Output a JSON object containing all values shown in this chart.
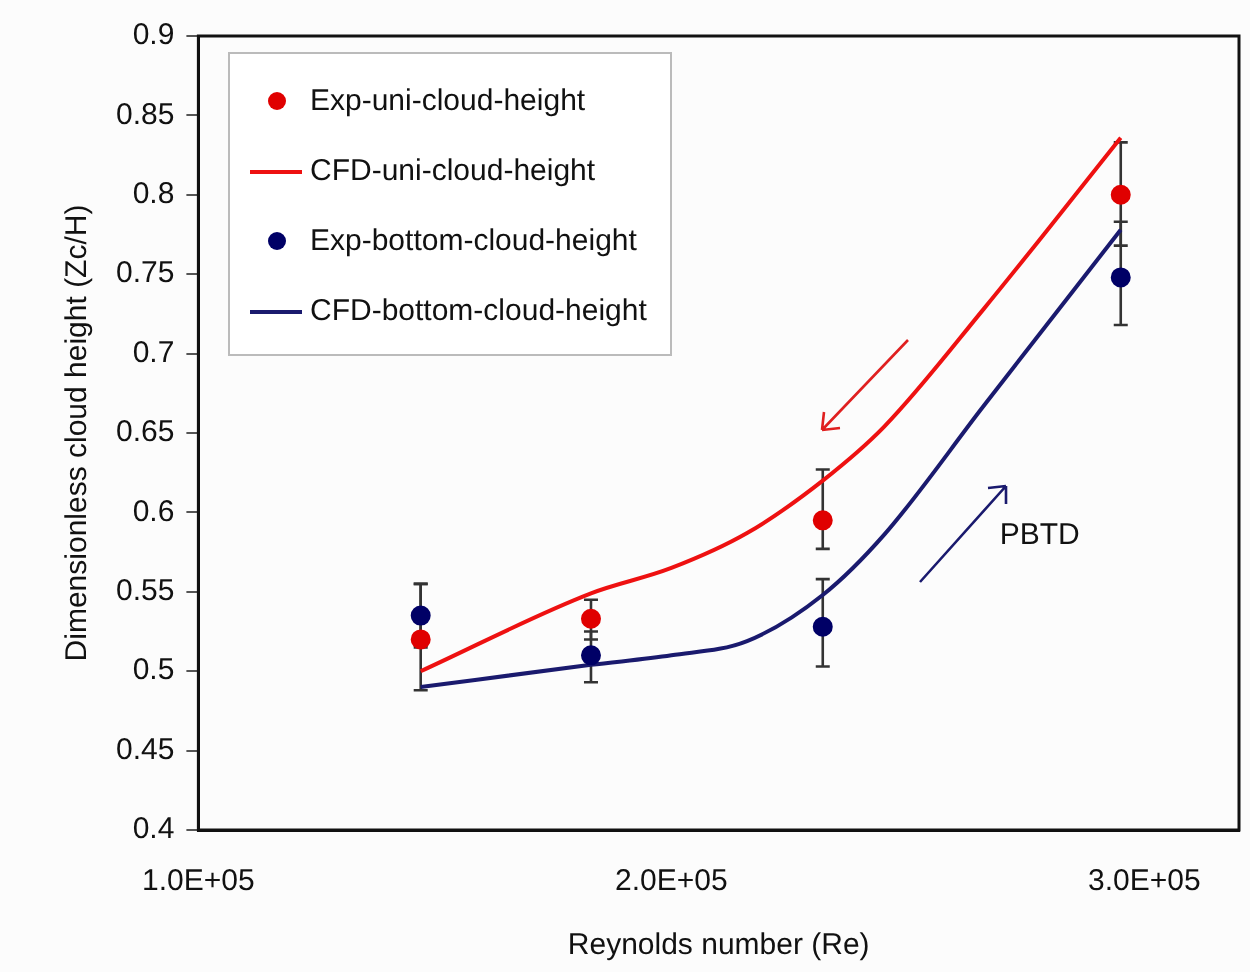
{
  "chart_data": {
    "type": "scatter",
    "xlabel": "Reynolds number (Re)",
    "ylabel": "Dimensionless cloud height (Zc/H)",
    "xlim": [
      100000,
      320000
    ],
    "xticks": [
      {
        "value": 100000,
        "label": "1.0E+05"
      },
      {
        "value": 200000,
        "label": "2.0E+05"
      },
      {
        "value": 300000,
        "label": "3.0E+05"
      }
    ],
    "ylim": [
      0.4,
      0.9
    ],
    "yticks": [
      0.4,
      0.45,
      0.5,
      0.55,
      0.6,
      0.65,
      0.7,
      0.75,
      0.8,
      0.85,
      0.9
    ],
    "grid": false,
    "legend": "top left",
    "annotations": [
      "PBTD"
    ],
    "series": [
      {
        "name": "Exp-uni-cloud-height",
        "marker": "circle",
        "color": "#e00000",
        "x": [
          147000,
          183000,
          232000,
          295000
        ],
        "values": [
          0.52,
          0.533,
          0.595,
          0.8
        ],
        "errors": [
          [
            0.488,
            0.555
          ],
          [
            0.52,
            0.545
          ],
          [
            0.577,
            0.627
          ],
          [
            0.768,
            0.833
          ]
        ]
      },
      {
        "name": "CFD-uni-cloud-height",
        "type": "line",
        "marker": "none",
        "color": "#ee1111",
        "x": [
          147000,
          183000,
          200000,
          216000,
          232000,
          245000,
          266000,
          295000
        ],
        "values": [
          0.5,
          0.549,
          0.565,
          0.587,
          0.62,
          0.654,
          0.728,
          0.836
        ]
      },
      {
        "name": "Exp-bottom-cloud-height",
        "marker": "circle",
        "color": "#000066",
        "x": [
          147000,
          183000,
          232000,
          295000
        ],
        "values": [
          0.535,
          0.51,
          0.528,
          0.748
        ],
        "errors": [
          [
            0.515,
            0.555
          ],
          [
            0.493,
            0.525
          ],
          [
            0.503,
            0.558
          ],
          [
            0.718,
            0.783
          ]
        ]
      },
      {
        "name": "CFD-bottom-cloud-height",
        "type": "line",
        "marker": "none",
        "color": "#1a1a6e",
        "x": [
          147000,
          183000,
          200000,
          216000,
          232000,
          245000,
          266000,
          295000
        ],
        "values": [
          0.49,
          0.504,
          0.51,
          0.519,
          0.548,
          0.586,
          0.667,
          0.778
        ]
      }
    ]
  }
}
